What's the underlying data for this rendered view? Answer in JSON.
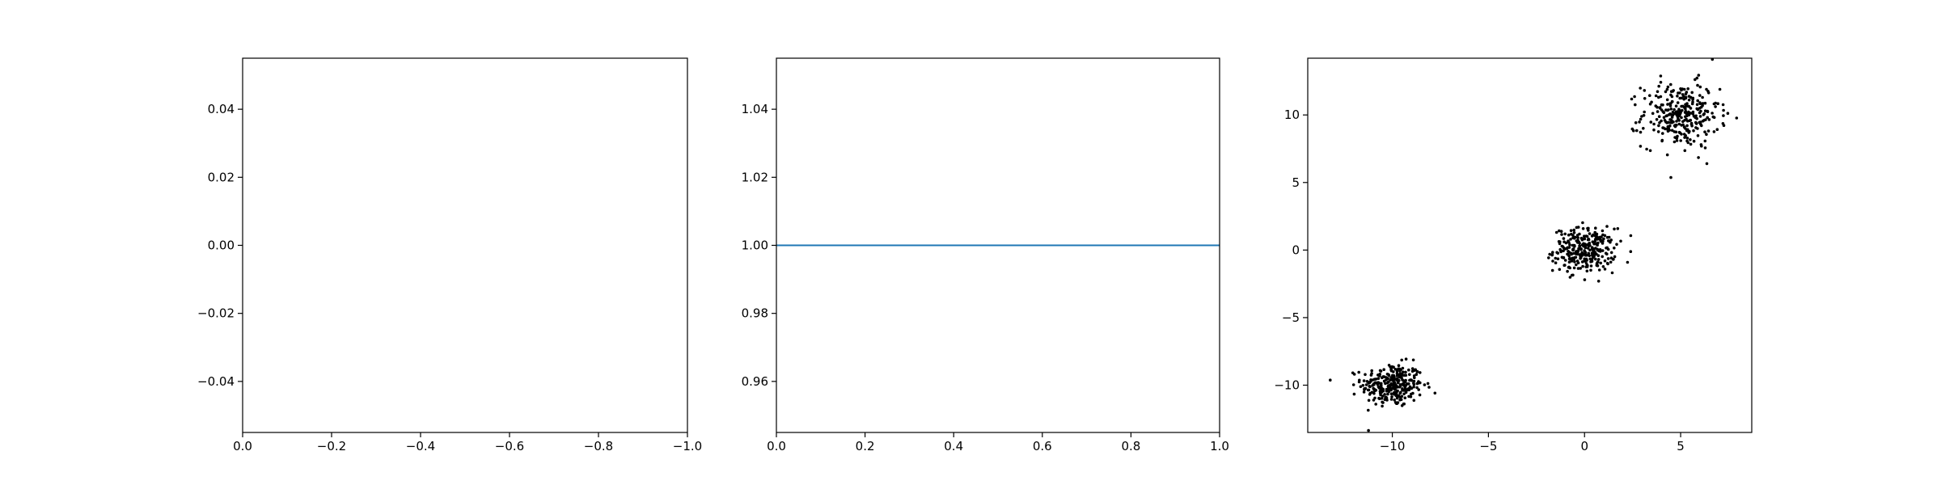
{
  "chart_data": [
    {
      "type": "empty",
      "x_ticks": [
        "0.0",
        "−0.2",
        "−0.4",
        "−0.6",
        "−0.8",
        "−1.0"
      ],
      "y_ticks": [
        "0.04",
        "0.02",
        "0.00",
        "−0.02",
        "−0.04"
      ],
      "xlim": [
        0.0,
        -1.0
      ],
      "ylim": [
        -0.055,
        0.055
      ],
      "x_inverted": true,
      "grid": false
    },
    {
      "type": "line",
      "x_ticks": [
        "0.0",
        "0.2",
        "0.4",
        "0.6",
        "0.8",
        "1.0"
      ],
      "y_ticks": [
        "1.04",
        "1.02",
        "1.00",
        "0.98",
        "0.96"
      ],
      "xlim": [
        0.0,
        1.0
      ],
      "ylim": [
        0.945,
        1.055
      ],
      "series": [
        {
          "x": [
            0.0,
            1.0
          ],
          "y": [
            1.0,
            1.0
          ],
          "color": "#1f77b4"
        }
      ],
      "grid": false
    },
    {
      "type": "scatter",
      "x_ticks": [
        "−10",
        "−5",
        "0",
        "5"
      ],
      "y_ticks": [
        "10",
        "5",
        "0",
        "−5",
        "−10"
      ],
      "xlim": [
        -14.4,
        8.7
      ],
      "ylim": [
        -13.5,
        14.2
      ],
      "point_color": "#000000",
      "clusters": [
        {
          "center": [
            -10,
            -10
          ],
          "std": [
            0.8,
            0.8
          ],
          "count": 300
        },
        {
          "center": [
            0,
            0
          ],
          "std": [
            0.8,
            0.8
          ],
          "count": 300
        },
        {
          "center": [
            5,
            10
          ],
          "std": [
            1.0,
            1.2
          ],
          "count": 300
        }
      ],
      "grid": false
    }
  ]
}
